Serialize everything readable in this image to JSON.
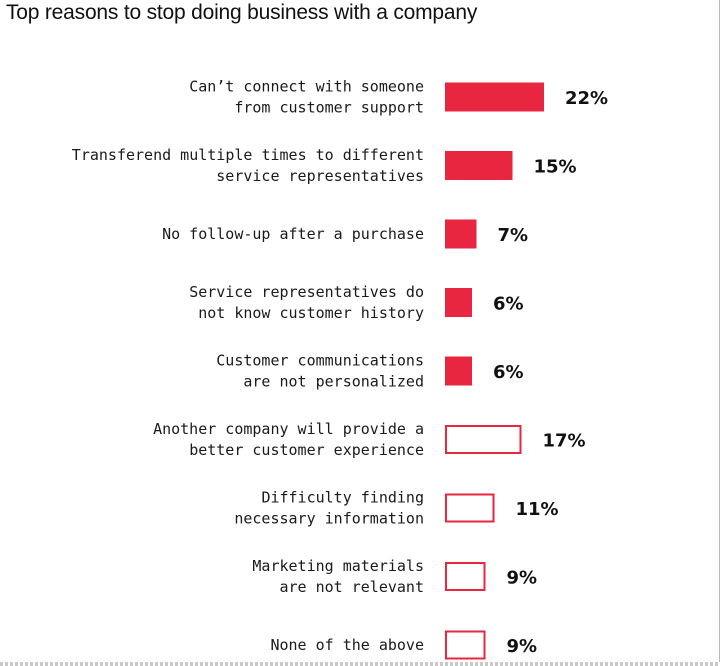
{
  "chart_data": {
    "type": "bar",
    "orientation": "horizontal",
    "title": "Top reasons to stop doing business with a company",
    "xlabel": "",
    "ylabel": "",
    "xlim": [
      0,
      22
    ],
    "grid": false,
    "colors": {
      "filled": "#e8263f",
      "outline": "#e8263f"
    },
    "categories": [
      [
        "Can’t connect with someone",
        "from customer support"
      ],
      [
        "Transferend multiple times to different",
        "service representatives"
      ],
      [
        "No follow-up after a purchase"
      ],
      [
        "Service representatives do",
        "not know customer history"
      ],
      [
        "Customer communications",
        "are not personalized"
      ],
      [
        "Another company will provide a",
        "better customer experience"
      ],
      [
        "Difficulty finding",
        "necessary information"
      ],
      [
        "Marketing materials",
        "are not relevant"
      ],
      [
        "None of the above"
      ]
    ],
    "values": [
      22,
      15,
      7,
      6,
      6,
      17,
      11,
      9,
      9
    ],
    "value_labels": [
      "22%",
      "15%",
      "7%",
      "6%",
      "6%",
      "17%",
      "11%",
      "9%",
      "9%"
    ],
    "bar_style": [
      "filled",
      "filled",
      "filled",
      "filled",
      "filled",
      "outline",
      "outline",
      "outline",
      "outline"
    ]
  }
}
